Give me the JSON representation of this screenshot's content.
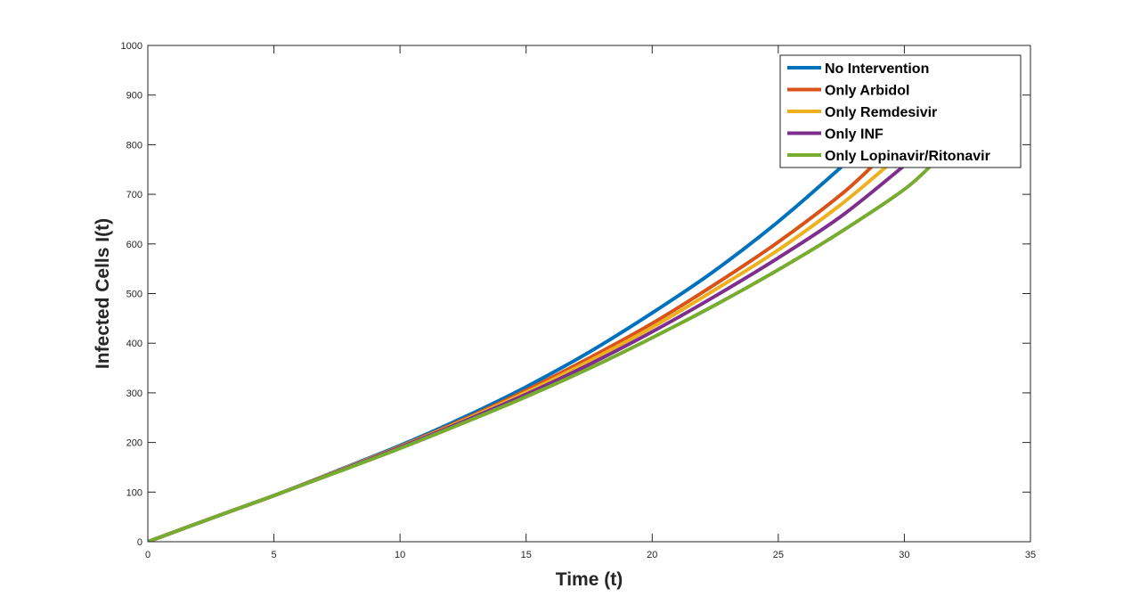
{
  "chart_data": {
    "type": "line",
    "title": "",
    "xlabel": "Time (t)",
    "ylabel": "Infected Cells I(t)",
    "xlim": [
      0,
      35
    ],
    "ylim": [
      0,
      1000
    ],
    "xticks": [
      0,
      5,
      10,
      15,
      20,
      25,
      30,
      35
    ],
    "yticks": [
      0,
      100,
      200,
      300,
      400,
      500,
      600,
      700,
      800,
      900,
      1000
    ],
    "grid": false,
    "box": true,
    "legend_position": "top-right",
    "series": [
      {
        "name": "No Intervention",
        "color": "#0072BD",
        "x": [
          0,
          2.5,
          5,
          7.5,
          10,
          12.5,
          15,
          17.5,
          20,
          22.5,
          25,
          27.5
        ],
        "y": [
          0,
          47,
          93,
          143,
          194,
          250,
          312,
          382,
          461,
          547,
          645,
          755
        ]
      },
      {
        "name": "Only Arbidol",
        "color": "#D95319",
        "x": [
          0,
          2.5,
          5,
          7.5,
          10,
          12.5,
          15,
          17.5,
          20,
          22.5,
          25,
          27.5,
          29
        ],
        "y": [
          0,
          47,
          93,
          142,
          192,
          246,
          305,
          370,
          440,
          519,
          604,
          700,
          770
        ]
      },
      {
        "name": "Only Remdesivir",
        "color": "#EDB120",
        "x": [
          0,
          2.5,
          5,
          7.5,
          10,
          12.5,
          15,
          17.5,
          20,
          22.5,
          25,
          27.5,
          29.5
        ],
        "y": [
          0,
          47,
          93,
          142,
          191,
          244,
          301,
          364,
          432,
          508,
          588,
          680,
          765
        ]
      },
      {
        "name": "Only INF",
        "color": "#7E2F8E",
        "x": [
          0,
          2.5,
          5,
          7.5,
          10,
          12.5,
          15,
          17.5,
          20,
          22.5,
          25,
          27.5,
          30
        ],
        "y": [
          0,
          47,
          93,
          141,
          190,
          242,
          297,
          357,
          423,
          495,
          572,
          656,
          758
        ]
      },
      {
        "name": "Only Lopinavir/Ritonavir",
        "color": "#77AC30",
        "x": [
          0,
          2.5,
          5,
          7.5,
          10,
          12.5,
          15,
          17.5,
          20,
          22.5,
          25,
          27.5,
          30,
          31.2
        ],
        "y": [
          0,
          47,
          93,
          140,
          188,
          239,
          292,
          349,
          411,
          477,
          548,
          625,
          710,
          765
        ]
      }
    ]
  }
}
